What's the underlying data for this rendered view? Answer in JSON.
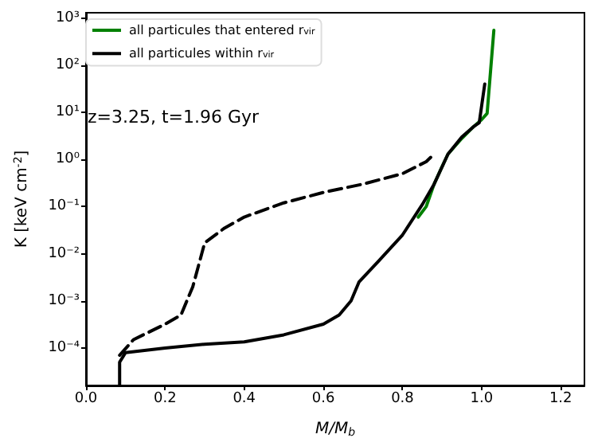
{
  "chart_data": {
    "type": "line",
    "xlabel": "M/M$_{b}$",
    "ylabel": "K [keV cm$^{-2}$]",
    "annotations": [
      "z=3.25, t=1.96 Gyr"
    ],
    "series": [
      {
        "name": "all particules that entered r$_{vir}$",
        "color": "#008000",
        "x": [
          0.84,
          0.86,
          0.88,
          0.9,
          0.915,
          0.95,
          0.98,
          1.0,
          1.014,
          1.031
        ],
        "values": [
          0.06,
          0.1,
          0.3,
          0.7,
          1.3,
          2.8,
          5,
          7,
          9.5,
          550
        ]
      },
      {
        "name": "all particules within r$_{vir}$",
        "color": "#000000",
        "x": [
          0.085,
          0.085,
          0.1,
          0.2,
          0.3,
          0.4,
          0.5,
          0.6,
          0.64,
          0.67,
          0.69,
          0.74,
          0.8,
          0.85,
          0.88,
          0.915,
          0.95,
          0.98,
          0.994,
          1.008
        ],
        "values": [
          1.6e-05,
          5e-05,
          8e-05,
          0.0001,
          0.00012,
          0.000135,
          0.00019,
          0.00032,
          0.0005,
          0.001,
          0.0025,
          0.007,
          0.025,
          0.11,
          0.3,
          1.3,
          3,
          5,
          6,
          40
        ]
      },
      {
        "color": "#000000",
        "line_style": "dashed",
        "x": [
          0.085,
          0.12,
          0.2,
          0.24,
          0.27,
          0.3,
          0.35,
          0.4,
          0.5,
          0.6,
          0.7,
          0.8,
          0.86,
          0.88
        ],
        "values": [
          7e-05,
          0.00015,
          0.00032,
          0.0005,
          0.002,
          0.017,
          0.035,
          0.06,
          0.12,
          0.2,
          0.3,
          0.5,
          0.9,
          1.3
        ]
      }
    ],
    "log": "y",
    "xlim": [
      0,
      1.26
    ],
    "ylim": [
      1.6e-05,
      1300
    ],
    "xticks": [
      {
        "value": 0,
        "label": "0.0"
      },
      0.2,
      0.4,
      0.6,
      0.8,
      {
        "value": 1,
        "label": "1.0"
      },
      1.2
    ],
    "yticks": [
      {
        "value": 0.0001,
        "label": "10⁻⁴"
      },
      {
        "value": 0.001,
        "label": "10⁻³"
      },
      {
        "value": 0.01,
        "label": "10⁻²"
      },
      {
        "value": 0.1,
        "label": "10⁻¹"
      },
      {
        "value": 1,
        "label": "10⁰"
      },
      {
        "value": 10,
        "label": "10¹"
      },
      {
        "value": 100,
        "label": "10²"
      },
      {
        "value": 1000,
        "label": "10³"
      }
    ],
    "grid": false,
    "legend": "top left",
    "marker": "none",
    "line_style": "solid"
  }
}
